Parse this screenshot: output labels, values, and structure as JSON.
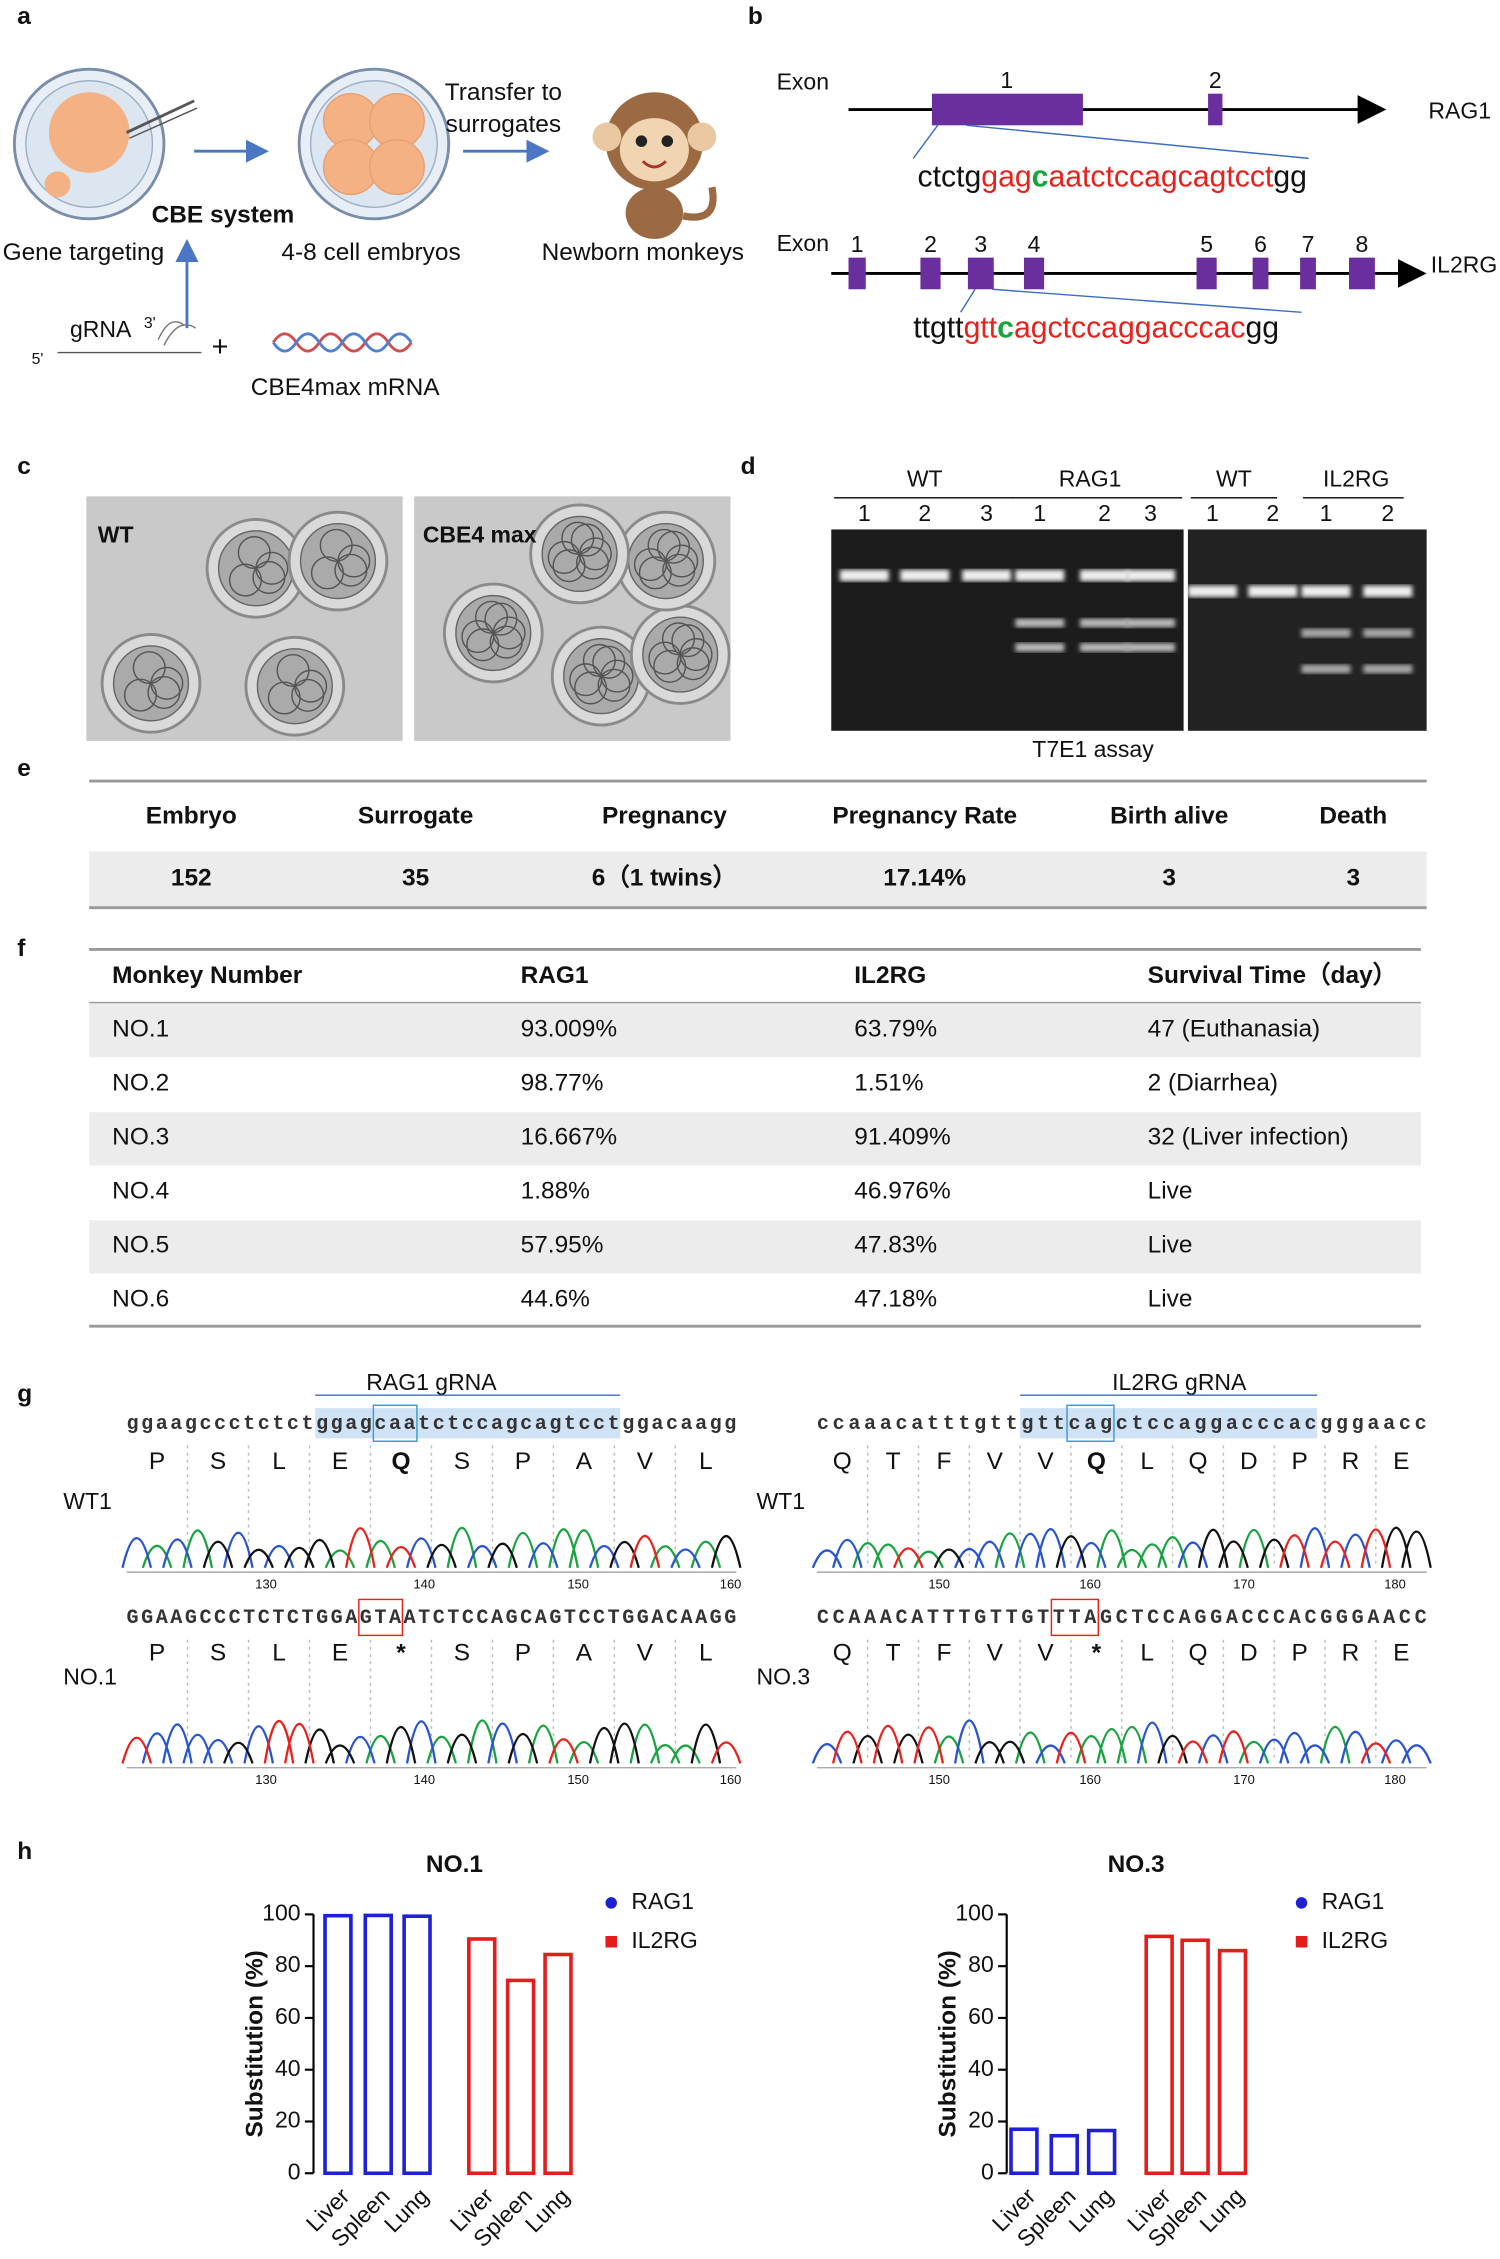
{
  "panel_labels": [
    "a",
    "b",
    "c",
    "d",
    "e",
    "f",
    "g",
    "h"
  ],
  "a": {
    "gene_targeting": "Gene targeting",
    "cbe_system": "CBE system",
    "embryos": "4-8 cell embryos",
    "transfer": [
      "Transfer to",
      "surrogates"
    ],
    "newborn": "Newborn monkeys",
    "grna": "gRNA",
    "end3": "3'",
    "end5": "5'",
    "plus": "+",
    "mrna": "CBE4max mRNA"
  },
  "b": {
    "rag1": {
      "exon": "Exon",
      "exons": [
        "1",
        "2"
      ],
      "gene": "RAG1",
      "sequence": [
        "ctctg",
        "gag",
        "c",
        "aatctccagcagtcct",
        "gg"
      ]
    },
    "il2rg": {
      "exon": "Exon",
      "exons": [
        "1",
        "2",
        "3",
        "4",
        "5",
        "6",
        "7",
        "8"
      ],
      "gene": "IL2RG",
      "sequence": [
        "ttgtt",
        "gtt",
        "c",
        "agctccaggacccac",
        "gg"
      ]
    }
  },
  "c": {
    "labels": [
      "WT",
      "CBE4 max"
    ]
  },
  "d": {
    "groups": [
      "WT",
      "RAG1",
      "WT",
      "IL2RG"
    ],
    "lanes": [
      [
        "1",
        "2",
        "3"
      ],
      [
        "1",
        "2",
        "3"
      ],
      [
        "1",
        "2"
      ],
      [
        "1",
        "2"
      ]
    ],
    "caption": "T7E1 assay"
  },
  "e": {
    "table": {
      "header": [
        "Embryo",
        "Surrogate",
        "Pregnancy",
        "Pregnancy Rate",
        "Birth alive",
        "Death"
      ],
      "rows": [
        [
          "152",
          "35",
          "6（1 twins）",
          "17.14%",
          "3",
          "3"
        ]
      ]
    }
  },
  "f": {
    "table": {
      "header": [
        "Monkey Number",
        "RAG1",
        "IL2RG",
        "Survival Time（day）"
      ],
      "rows": [
        [
          "NO.1",
          "93.009%",
          "63.79%",
          "47 (Euthanasia)"
        ],
        [
          "NO.2",
          "98.77%",
          "1.51%",
          "2 (Diarrhea)"
        ],
        [
          "NO.3",
          "16.667%",
          "91.409%",
          "32 (Liver infection)"
        ],
        [
          "NO.4",
          "1.88%",
          "46.976%",
          "Live"
        ],
        [
          "NO.5",
          "57.95%",
          "47.83%",
          "Live"
        ],
        [
          "NO.6",
          "44.6%",
          "47.18%",
          "Live"
        ]
      ]
    }
  },
  "g": {
    "left": {
      "grna": "RAG1 gRNA",
      "wt": {
        "label": "WT1",
        "sequence": [
          "ggaagccctctct",
          "ggagcaatctccagcagtcct",
          "ggacaagg"
        ],
        "amino_acids": [
          "P",
          "S",
          "L",
          "E",
          "Q",
          "S",
          "P",
          "A",
          "V",
          "L"
        ]
      },
      "mutant": {
        "label": "NO.1",
        "sequence": [
          "GGAAGCCCTCTCTGGAG",
          "T",
          "AATCTCCAGCAGTCCTGGACAAGG"
        ],
        "amino_acids": [
          "P",
          "S",
          "L",
          "E",
          "*",
          "S",
          "P",
          "A",
          "V",
          "L"
        ]
      },
      "axis": [
        130,
        140,
        150,
        160
      ]
    },
    "right": {
      "grna": "IL2RG gRNA",
      "wt": {
        "label": "WT1",
        "sequence": [
          "ccaaacatttgtt",
          "gttcagctccaggacccac",
          "gggaacc"
        ],
        "amino_acids": [
          "Q",
          "T",
          "F",
          "V",
          "V",
          "Q",
          "L",
          "Q",
          "D",
          "P",
          "R",
          "E"
        ]
      },
      "mutant": {
        "label": "NO.3",
        "sequence": [
          "CCAAACATTTGTTGTT",
          "T",
          "AGCTCCAGGACCCACGGGAACC"
        ],
        "amino_acids": [
          "Q",
          "T",
          "F",
          "V",
          "V",
          "*",
          "L",
          "Q",
          "D",
          "P",
          "R",
          "E"
        ]
      },
      "axis": [
        150,
        160,
        170,
        180
      ]
    }
  },
  "chart_data": [
    {
      "type": "bar",
      "title": "NO.1",
      "y_label": "Substitution (%)",
      "categories": [
        "Liver",
        "Spleen",
        "Lung"
      ],
      "series": [
        {
          "name": "RAG1",
          "color": "#1f1fd6",
          "values": [
            99.5,
            99.6,
            99.3
          ]
        },
        {
          "name": "IL2RG",
          "color": "#e51c1c",
          "values": [
            90.5,
            74.5,
            84.5
          ]
        }
      ],
      "ylim": [
        0,
        100
      ],
      "yticks": [
        0,
        20,
        40,
        60,
        80,
        100
      ]
    },
    {
      "type": "bar",
      "title": "NO.3",
      "y_label": "Substitution (%)",
      "categories": [
        "Liver",
        "Spleen",
        "Lung"
      ],
      "series": [
        {
          "name": "RAG1",
          "color": "#1f1fd6",
          "values": [
            17,
            14.5,
            16.5
          ]
        },
        {
          "name": "IL2RG",
          "color": "#e51c1c",
          "values": [
            91.5,
            90,
            86
          ]
        }
      ],
      "ylim": [
        0,
        100
      ],
      "yticks": [
        0,
        20,
        40,
        60,
        80,
        100
      ]
    }
  ]
}
